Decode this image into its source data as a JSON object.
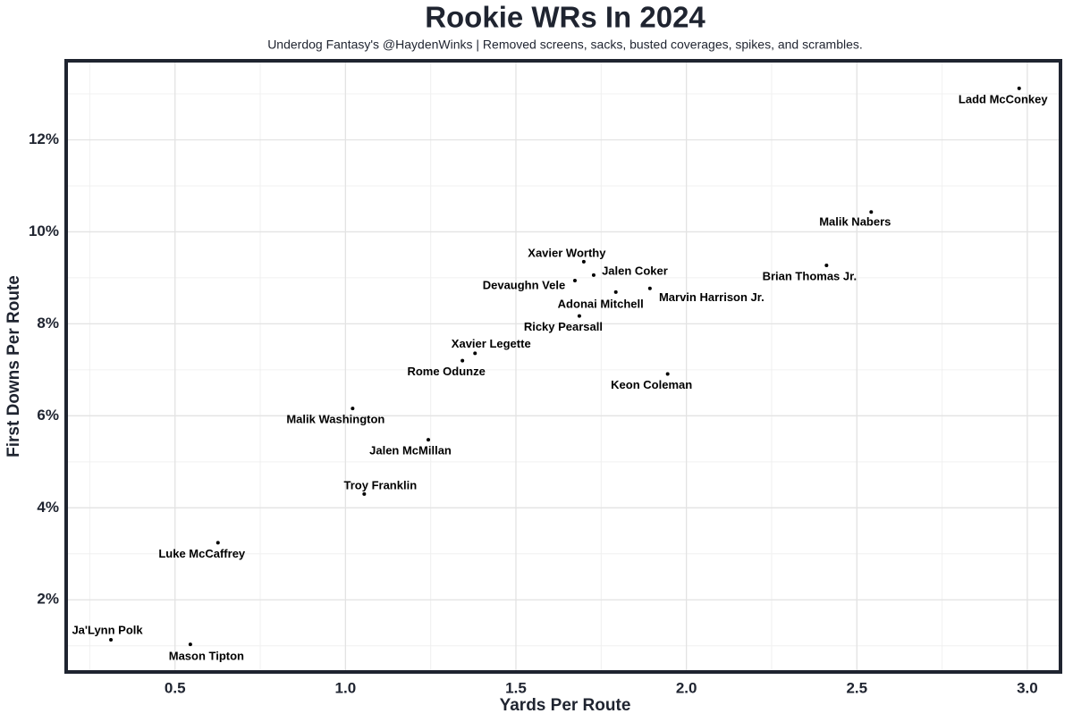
{
  "chart_data": {
    "type": "scatter",
    "title": "Rookie WRs In 2024",
    "subtitle": "Underdog Fantasy's @HaydenWinks | Removed screens, sacks, busted coverages, spikes, and scrambles.",
    "x_label": "Yards Per Route",
    "y_label": "First Downs Per Route",
    "labels": [
      "Ladd McConkey",
      "Malik Nabers",
      "Brian Thomas Jr.",
      "Xavier Worthy",
      "Jalen Coker",
      "Devaughn Vele",
      "Adonai Mitchell",
      "Marvin Harrison Jr.",
      "Ricky Pearsall",
      "Xavier Legette",
      "Rome Odunze",
      "Keon Coleman",
      "Malik Washington",
      "Jalen McMillan",
      "Troy Franklin",
      "Luke McCaffrey",
      "Ja'Lynn Polk",
      "Mason Tipton"
    ],
    "x": [
      2.976,
      2.542,
      2.411,
      1.699,
      1.728,
      1.673,
      1.793,
      1.893,
      1.686,
      1.38,
      1.343,
      1.945,
      1.021,
      1.243,
      1.055,
      0.626,
      0.312,
      0.545
    ],
    "values": [
      13.12,
      10.43,
      9.27,
      9.35,
      9.06,
      8.94,
      8.69,
      8.77,
      8.17,
      7.36,
      7.2,
      6.91,
      6.16,
      5.48,
      4.3,
      3.24,
      1.13,
      1.03
    ],
    "color": "#000000",
    "xlim": [
      0.186,
      3.092
    ],
    "ylim": [
      0.47,
      13.68
    ],
    "xticks": [
      0.5,
      {
        "value": 1,
        "label": "1.0"
      },
      1.5,
      {
        "value": 2,
        "label": "2.0"
      },
      2.5,
      {
        "value": 3,
        "label": "3.0"
      }
    ],
    "yticks": [
      {
        "value": 2,
        "label": "2%"
      },
      {
        "value": 4,
        "label": "4%"
      },
      {
        "value": 6,
        "label": "6%"
      },
      {
        "value": 8,
        "label": "8%"
      },
      {
        "value": 10,
        "label": "10%"
      },
      {
        "value": 12,
        "label": "12%"
      }
    ],
    "grid": true
  }
}
